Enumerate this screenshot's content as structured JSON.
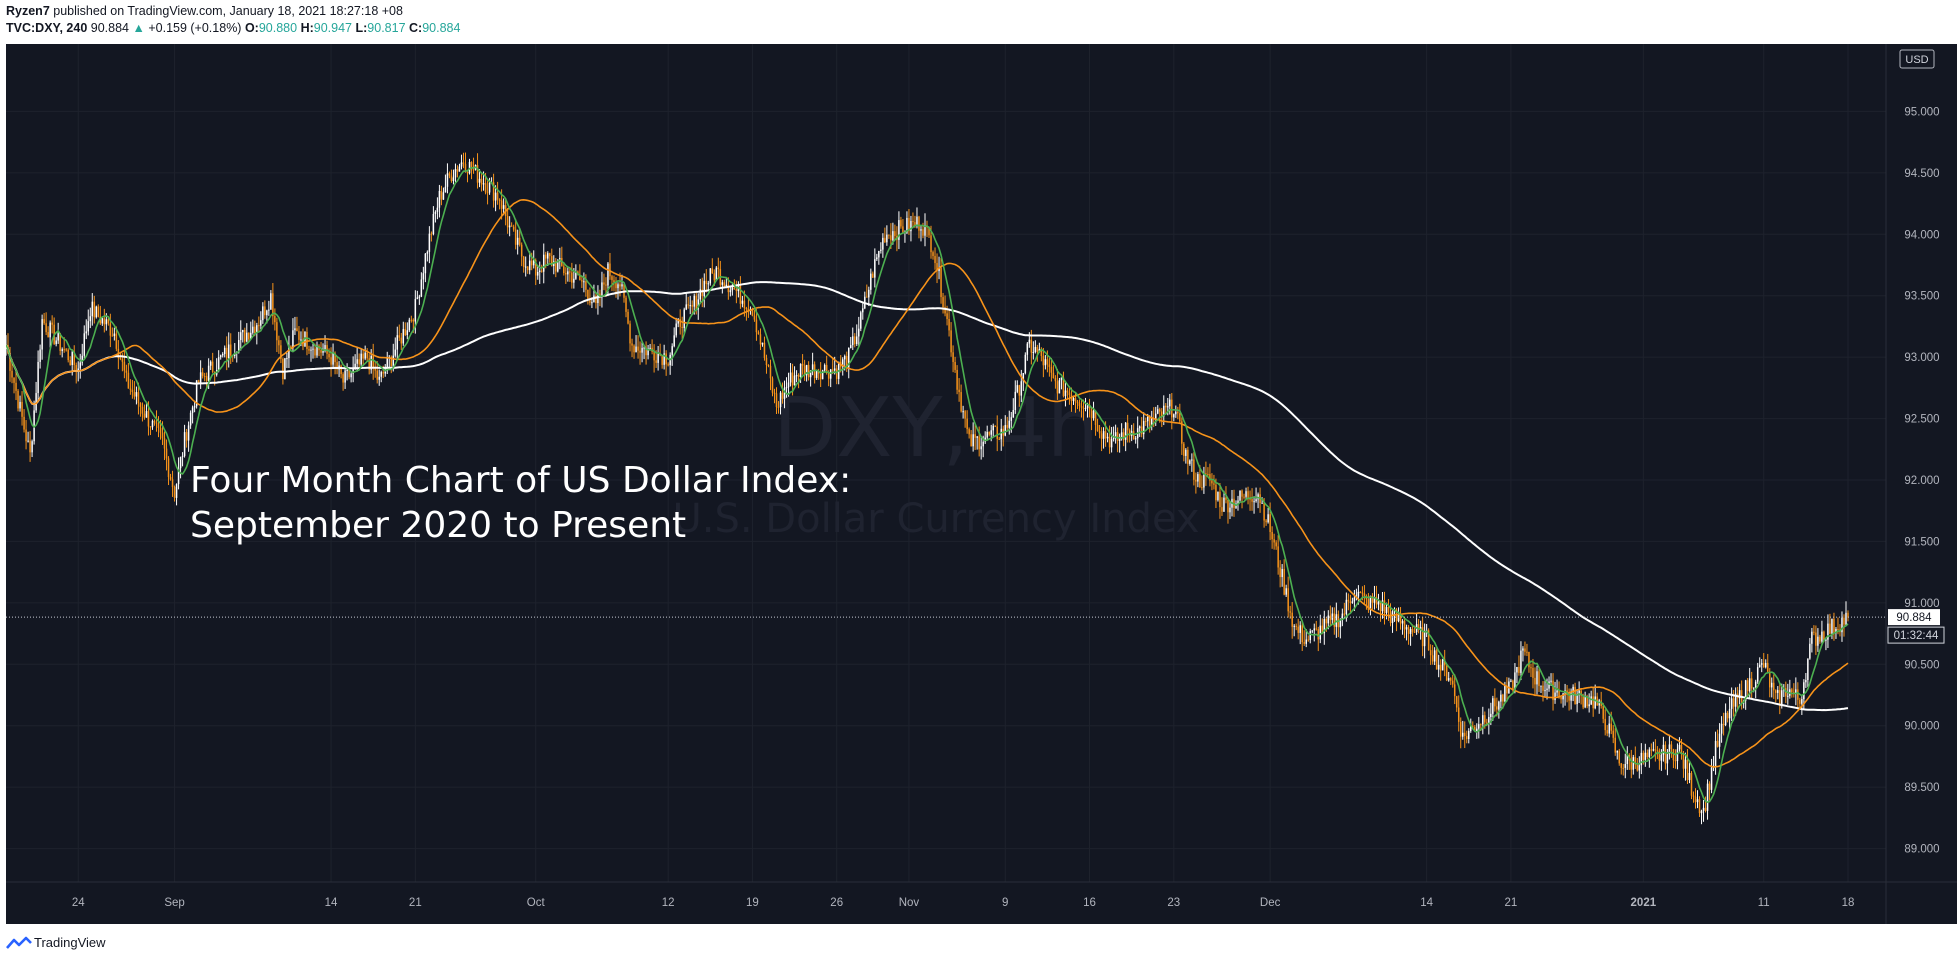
{
  "header": {
    "author": "Ryzen7",
    "published_text": "published on TradingView.com, January 18, 2021 18:27:18 +08",
    "symbol": "TVC:DXY, 240",
    "last": "90.884",
    "change_arrow": "▲",
    "change": "+0.159 (+0.18%)",
    "o_label": "O:",
    "o_value": "90.880",
    "h_label": "H:",
    "h_value": "90.947",
    "l_label": "L:",
    "l_value": "90.817",
    "c_label": "C:",
    "c_value": "90.884"
  },
  "watermark": {
    "ticker": "DXY, 4h",
    "name": "U.S. Dollar Currency Index"
  },
  "annotation": {
    "line1": "Four Month Chart of US Dollar Index:",
    "line2": "September 2020 to Present"
  },
  "price_badges": {
    "last_price": "90.884",
    "countdown": "01:32:44",
    "currency": "USD"
  },
  "footer": {
    "brand": "TradingView"
  },
  "colors": {
    "background": "#131722",
    "up_candle": "#ffffff",
    "down_candle": "#f7931a",
    "ma_fast": "#4caf50",
    "ma_mid": "#f7931a",
    "ma_slow": "#ffffff",
    "accent": "#26a69a"
  },
  "chart_data": {
    "type": "candlestick",
    "interval": "4h",
    "y_axis": {
      "ticks": [
        "89.000",
        "89.500",
        "90.000",
        "90.500",
        "91.000",
        "91.500",
        "92.000",
        "92.500",
        "93.000",
        "93.500",
        "94.000",
        "94.500",
        "95.000"
      ],
      "range": [
        88.5,
        95.5
      ]
    },
    "x_axis": {
      "ticks": [
        "24",
        "Sep",
        "14",
        "21",
        "Oct",
        "12",
        "19",
        "26",
        "Nov",
        "9",
        "16",
        "23",
        "Dec",
        "14",
        "21",
        "2021",
        "11",
        "18"
      ],
      "bold_ticks": [
        "2021"
      ]
    },
    "price_path": [
      [
        "Aug 18",
        93.1
      ],
      [
        "Aug 20",
        92.2
      ],
      [
        "Aug 21",
        93.3
      ],
      [
        "Aug 24",
        92.9
      ],
      [
        "Aug 25",
        93.4
      ],
      [
        "Aug 27",
        93.2
      ],
      [
        "Aug 28",
        92.8
      ],
      [
        "Aug 31",
        92.3
      ],
      [
        "Sep 1",
        91.9
      ],
      [
        "Sep 2",
        92.4
      ],
      [
        "Sep 3",
        92.8
      ],
      [
        "Sep 4",
        92.9
      ],
      [
        "Sep 8",
        93.3
      ],
      [
        "Sep 9",
        93.5
      ],
      [
        "Sep 10",
        92.9
      ],
      [
        "Sep 11",
        93.2
      ],
      [
        "Sep 14",
        93.0
      ],
      [
        "Sep 15",
        92.8
      ],
      [
        "Sep 16",
        92.9
      ],
      [
        "Sep 17",
        93.0
      ],
      [
        "Sep 18",
        92.8
      ],
      [
        "Sep 21",
        93.4
      ],
      [
        "Sep 22",
        93.9
      ],
      [
        "Sep 23",
        94.3
      ],
      [
        "Sep 24",
        94.5
      ],
      [
        "Sep 25",
        94.6
      ],
      [
        "Sep 28",
        94.3
      ],
      [
        "Sep 29",
        94.0
      ],
      [
        "Sep 30",
        93.8
      ],
      [
        "Oct 1",
        93.7
      ],
      [
        "Oct 2",
        93.8
      ],
      [
        "Oct 5",
        93.6
      ],
      [
        "Oct 6",
        93.4
      ],
      [
        "Oct 7",
        93.7
      ],
      [
        "Oct 8",
        93.6
      ],
      [
        "Oct 9",
        93.1
      ],
      [
        "Oct 12",
        93.0
      ],
      [
        "Oct 13",
        93.3
      ],
      [
        "Oct 14",
        93.4
      ],
      [
        "Oct 15",
        93.6
      ],
      [
        "Oct 16",
        93.7
      ],
      [
        "Oct 19",
        93.4
      ],
      [
        "Oct 20",
        93.0
      ],
      [
        "Oct 21",
        92.6
      ],
      [
        "Oct 22",
        92.8
      ],
      [
        "Oct 23",
        92.9
      ],
      [
        "Oct 26",
        92.9
      ],
      [
        "Oct 27",
        93.0
      ],
      [
        "Oct 28",
        93.3
      ],
      [
        "Oct 29",
        93.7
      ],
      [
        "Oct 30",
        94.0
      ],
      [
        "Nov 2",
        94.1
      ],
      [
        "Nov 3",
        93.9
      ],
      [
        "Nov 4",
        93.4
      ],
      [
        "Nov 5",
        92.8
      ],
      [
        "Nov 6",
        92.3
      ],
      [
        "Nov 9",
        92.4
      ],
      [
        "Nov 10",
        92.7
      ],
      [
        "Nov 11",
        93.1
      ],
      [
        "Nov 12",
        93.0
      ],
      [
        "Nov 13",
        92.8
      ],
      [
        "Nov 16",
        92.6
      ],
      [
        "Nov 17",
        92.4
      ],
      [
        "Nov 18",
        92.3
      ],
      [
        "Nov 19",
        92.4
      ],
      [
        "Nov 20",
        92.4
      ],
      [
        "Nov 23",
        92.6
      ],
      [
        "Nov 24",
        92.2
      ],
      [
        "Nov 25",
        92.0
      ],
      [
        "Nov 26",
        92.0
      ],
      [
        "Nov 27",
        91.8
      ],
      [
        "Nov 30",
        91.9
      ],
      [
        "Dec 1",
        91.6
      ],
      [
        "Dec 2",
        91.2
      ],
      [
        "Dec 3",
        90.8
      ],
      [
        "Dec 4",
        90.7
      ],
      [
        "Dec 7",
        90.9
      ],
      [
        "Dec 8",
        91.1
      ],
      [
        "Dec 9",
        91.0
      ],
      [
        "Dec 10",
        91.0
      ],
      [
        "Dec 11",
        90.9
      ],
      [
        "Dec 14",
        90.7
      ],
      [
        "Dec 15",
        90.5
      ],
      [
        "Dec 16",
        90.4
      ],
      [
        "Dec 17",
        89.9
      ],
      [
        "Dec 18",
        90.0
      ],
      [
        "Dec 21",
        90.3
      ],
      [
        "Dec 22",
        90.6
      ],
      [
        "Dec 23",
        90.4
      ],
      [
        "Dec 24",
        90.3
      ],
      [
        "Dec 28",
        90.2
      ],
      [
        "Dec 29",
        90.0
      ],
      [
        "Dec 30",
        89.7
      ],
      [
        "Dec 31",
        89.7
      ],
      [
        "Jan 4",
        89.8
      ],
      [
        "Jan 5",
        89.5
      ],
      [
        "Jan 6",
        89.3
      ],
      [
        "Jan 7",
        89.8
      ],
      [
        "Jan 8",
        90.1
      ],
      [
        "Jan 11",
        90.5
      ],
      [
        "Jan 12",
        90.2
      ],
      [
        "Jan 13",
        90.3
      ],
      [
        "Jan 14",
        90.2
      ],
      [
        "Jan 15",
        90.7
      ],
      [
        "Jan 18",
        90.88
      ]
    ]
  }
}
